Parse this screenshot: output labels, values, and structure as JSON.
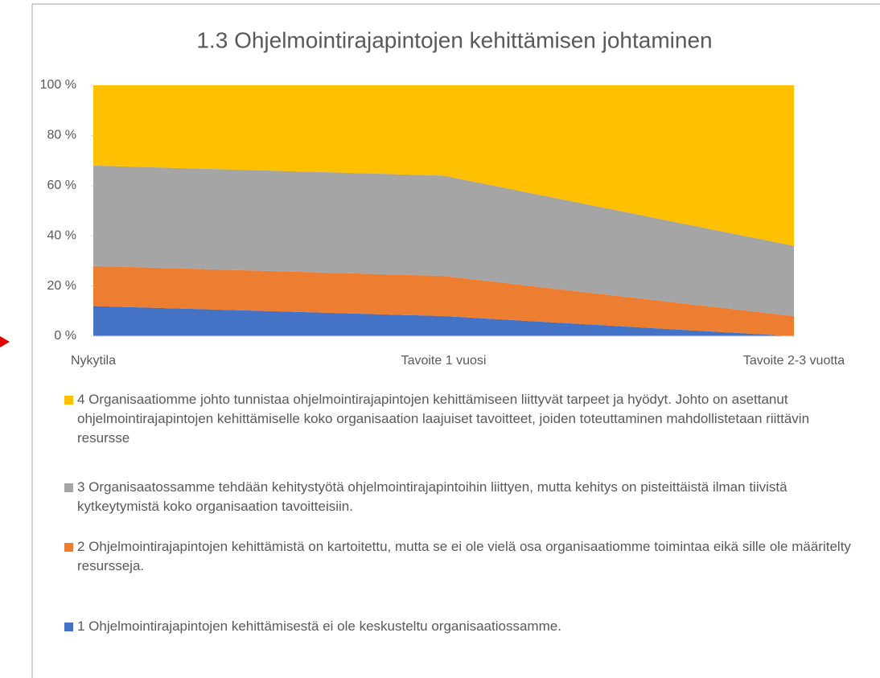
{
  "chart_data": {
    "type": "stacked_area",
    "title": "1.3 Ohjelmointirajapintojen kehittämisen johtaminen",
    "categories": [
      "Nykytila",
      "Tavoite 1 vuosi",
      "Tavoite 2-3 vuotta"
    ],
    "series": [
      {
        "name": "1 Ohjelmointirajapintojen kehittämisestä ei ole keskusteltu organisaatiossamme.",
        "color": "#4472c4",
        "values": [
          12,
          8,
          0
        ]
      },
      {
        "name": "2 Ohjelmointirajapintojen kehittämistä on kartoitettu, mutta se ei ole vielä osa organisaatiomme toimintaa eikä sille ole määritelty resursseja.",
        "color": "#ed7d31",
        "values": [
          16,
          16,
          8
        ]
      },
      {
        "name": "3 Organisaatossamme tehdään kehitystyötä ohjelmointirajapintoihin liittyen, mutta kehitys on pisteittäistä ilman tiivistä kytkeytymistä koko organisaation tavoitteisiin.",
        "color": "#a5a5a5",
        "values": [
          40,
          40,
          28
        ]
      },
      {
        "name": "4 Organisaatiomme johto tunnistaa ohjelmointirajapintojen kehittämiseen liittyvät tarpeet ja hyödyt. Johto on asettanut ohjelmointirajapintojen kehittämiselle koko organisaation laajuiset tavoitteet, joiden toteuttaminen mahdollistetaan riittävin resursse",
        "color": "#ffc000",
        "values": [
          32,
          36,
          64
        ]
      }
    ],
    "ylim": [
      0,
      100
    ],
    "yticks": [
      {
        "value": 0,
        "label": "0 %"
      },
      {
        "value": 20,
        "label": "20 %"
      },
      {
        "value": 40,
        "label": "40 %"
      },
      {
        "value": 60,
        "label": "60 %"
      },
      {
        "value": 80,
        "label": "80 %"
      },
      {
        "value": 100,
        "label": "100 %"
      }
    ]
  }
}
